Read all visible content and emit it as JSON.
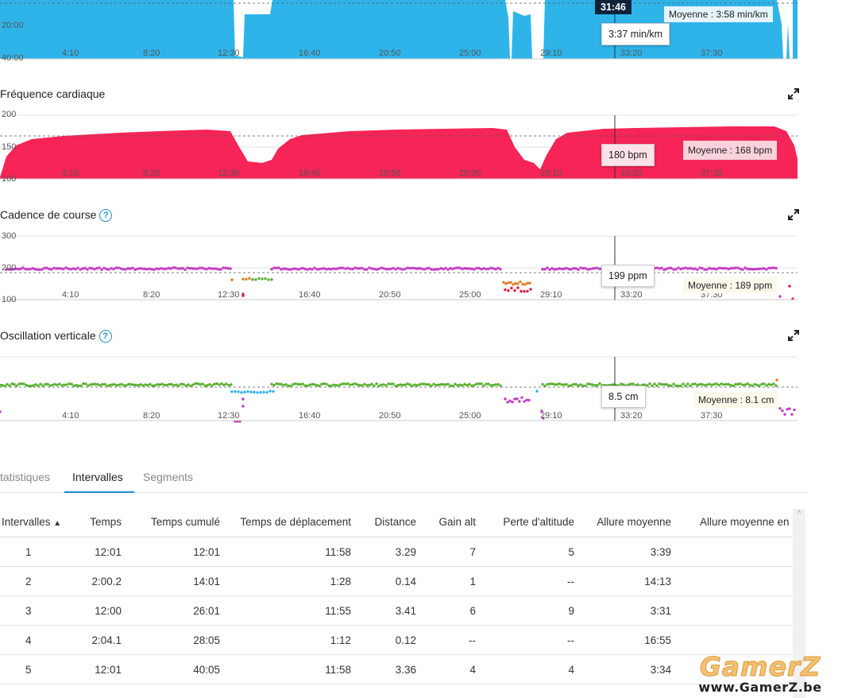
{
  "x_ticks": [
    "4:10",
    "8:20",
    "12:30",
    "16:40",
    "20:50",
    "25:00",
    "29:10",
    "33:20",
    "37:30"
  ],
  "pace_chart": {
    "y_labels": [
      "20:00",
      "40:00"
    ],
    "color": "#2fb4ea",
    "current_time": "31:46",
    "tooltip": "3:37 min/km",
    "average": "Moyenne : 3:58 min/km"
  },
  "heart_rate": {
    "title": "Fréquence cardiaque",
    "y_labels": [
      "200",
      "150",
      "100"
    ],
    "color": "#f72457",
    "tooltip": "180 bpm",
    "average": "Moyenne : 168 bpm"
  },
  "cadence": {
    "title": "Cadence de course",
    "y_labels": [
      "300",
      "200",
      "100"
    ],
    "color": "#c43ac4",
    "tooltip": "199 ppm",
    "average": "Moyenne : 189 ppm"
  },
  "oscillation": {
    "title": "Oscillation verticale",
    "color": "#5ab031",
    "tooltip": "8.5 cm",
    "average": "Moyenne : 8.1 cm"
  },
  "tabs": {
    "statistics": "tatistiques",
    "intervals": "Intervalles",
    "segments": "Segments"
  },
  "table": {
    "sort_indicator": "▲",
    "columns": [
      "Intervalles",
      "Temps",
      "Temps cumulé",
      "Temps de déplacement",
      "Distance",
      "Gain alt",
      "Perte d'altitude",
      "Allure moyenne",
      "Allure moyenne en"
    ],
    "rows": [
      [
        "1",
        "12:01",
        "12:01",
        "11:58",
        "3.29",
        "7",
        "5",
        "3:39"
      ],
      [
        "2",
        "2:00.2",
        "14:01",
        "1:28",
        "0.14",
        "1",
        "--",
        "14:13"
      ],
      [
        "3",
        "12:00",
        "26:01",
        "11:55",
        "3.41",
        "6",
        "9",
        "3:31"
      ],
      [
        "4",
        "2:04.1",
        "28:05",
        "1:12",
        "0.12",
        "--",
        "--",
        "16:55"
      ],
      [
        "5",
        "12:01",
        "40:05",
        "11:58",
        "3.36",
        "4",
        "4",
        "3:34"
      ]
    ]
  },
  "watermark": {
    "logo": "GamerZ",
    "url": "www.GamerZ.be"
  }
}
